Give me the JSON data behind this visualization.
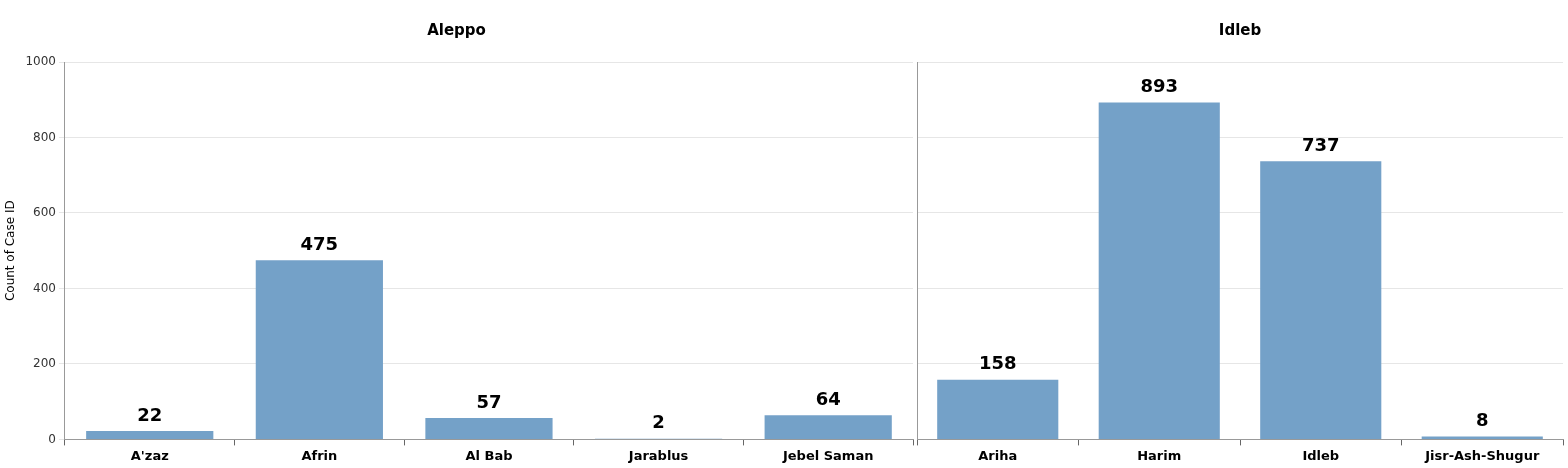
{
  "chart_data": [
    {
      "type": "bar",
      "title": "Aleppo",
      "ylabel": "Count of Case ID",
      "categories": [
        "A'zaz",
        "Afrin",
        "Al Bab",
        "Jarablus",
        "Jebel Saman"
      ],
      "values": [
        22,
        475,
        57,
        2,
        64
      ],
      "color": "#74a1c8",
      "ylim": [
        0,
        1000
      ],
      "yticks": [
        0,
        200,
        400,
        600,
        800,
        1000
      ],
      "grid": "y",
      "data_labels": true,
      "legend": false
    },
    {
      "type": "bar",
      "title": "Idleb",
      "categories": [
        "Ariha",
        "Harim",
        "Idleb",
        "Jisr-Ash-Shugur"
      ],
      "values": [
        158,
        893,
        737,
        8
      ],
      "color": "#74a1c8",
      "ylim": [
        0,
        1000
      ],
      "yticks": [
        0,
        200,
        400,
        600,
        800,
        1000
      ],
      "grid": "y",
      "data_labels": true,
      "legend": false,
      "tick_labels": "x"
    }
  ]
}
